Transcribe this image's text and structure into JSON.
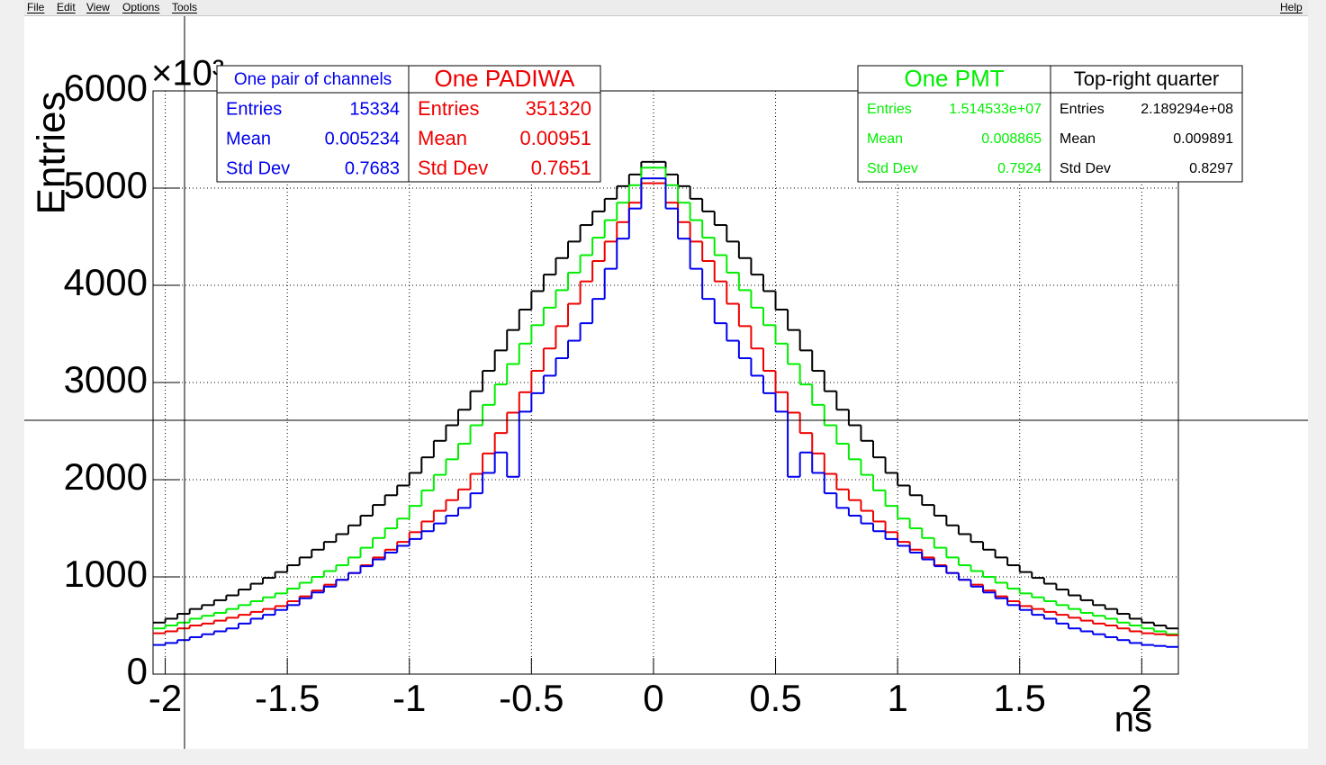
{
  "menu": [
    "File",
    "Edit",
    "View",
    "Options",
    "Tools",
    "Help"
  ],
  "chart_data": {
    "type": "histogram",
    "x_label": "ns",
    "y_label": "Entries",
    "y_multiplier": "×10³",
    "xlim": [
      -2.05,
      2.15
    ],
    "xticks": [
      -2,
      -1.5,
      -1,
      -0.5,
      0,
      0.5,
      1,
      1.5,
      2
    ],
    "ylim": [
      0,
      6000
    ],
    "yticks": [
      0,
      1000,
      2000,
      3000,
      4000,
      5000,
      6000
    ],
    "grid": true,
    "bins": [
      -2.05,
      -2,
      -1.95,
      -1.9,
      -1.85,
      -1.8,
      -1.75,
      -1.7,
      -1.65,
      -1.6,
      -1.55,
      -1.5,
      -1.45,
      -1.4,
      -1.35,
      -1.3,
      -1.25,
      -1.2,
      -1.15,
      -1.1,
      -1.05,
      -1,
      -0.95,
      -0.9,
      -0.85,
      -0.8,
      -0.75,
      -0.7,
      -0.65,
      -0.6,
      -0.55,
      -0.5,
      -0.45,
      -0.4,
      -0.35,
      -0.3,
      -0.25,
      -0.2,
      -0.15,
      -0.1,
      -0.05,
      0,
      0.05,
      0.1,
      0.15,
      0.2,
      0.25,
      0.3,
      0.35,
      0.4,
      0.45,
      0.5,
      0.55,
      0.6,
      0.65,
      0.7,
      0.75,
      0.8,
      0.85,
      0.9,
      0.95,
      1,
      1.05,
      1.1,
      1.15,
      1.2,
      1.25,
      1.3,
      1.35,
      1.4,
      1.45,
      1.5,
      1.55,
      1.6,
      1.65,
      1.7,
      1.75,
      1.8,
      1.85,
      1.9,
      1.95,
      2,
      2.05,
      2.1,
      2.15
    ],
    "series": [
      {
        "name": "Top-right quarter",
        "color": "#000000",
        "values": [
          530,
          570,
          620,
          670,
          710,
          760,
          810,
          870,
          930,
          990,
          1050,
          1120,
          1200,
          1280,
          1360,
          1440,
          1530,
          1630,
          1740,
          1840,
          1940,
          2070,
          2230,
          2400,
          2560,
          2720,
          2910,
          3120,
          3330,
          3540,
          3750,
          3940,
          4110,
          4280,
          4450,
          4620,
          4760,
          4890,
          5020,
          5140,
          5270,
          5270,
          5140,
          5020,
          4890,
          4760,
          4620,
          4450,
          4280,
          4110,
          3940,
          3750,
          3540,
          3330,
          3120,
          2910,
          2720,
          2560,
          2400,
          2230,
          2070,
          1940,
          1840,
          1740,
          1630,
          1530,
          1440,
          1360,
          1280,
          1200,
          1120,
          1050,
          990,
          930,
          870,
          810,
          760,
          710,
          670,
          620,
          570,
          530,
          500,
          470
        ],
        "stats": {
          "Entries": "2.189294e+08",
          "Mean": "0.009891",
          "Std Dev": "0.8297"
        }
      },
      {
        "name": "One PMT",
        "color": "#00ee00",
        "values": [
          470,
          500,
          530,
          570,
          600,
          630,
          670,
          710,
          750,
          790,
          830,
          880,
          940,
          1000,
          1060,
          1120,
          1200,
          1300,
          1400,
          1500,
          1600,
          1730,
          1890,
          2050,
          2210,
          2370,
          2560,
          2770,
          2980,
          3190,
          3400,
          3590,
          3770,
          3950,
          4130,
          4310,
          4490,
          4670,
          4850,
          5030,
          5210,
          5210,
          5030,
          4850,
          4670,
          4490,
          4310,
          4130,
          3950,
          3770,
          3590,
          3400,
          3190,
          2980,
          2770,
          2560,
          2370,
          2210,
          2050,
          1890,
          1730,
          1600,
          1500,
          1400,
          1300,
          1200,
          1120,
          1060,
          1000,
          940,
          880,
          830,
          790,
          750,
          710,
          670,
          630,
          600,
          570,
          530,
          500,
          470,
          440,
          410
        ],
        "stats": {
          "Entries": "1.514533e+07",
          "Mean": "0.008865",
          "Std Dev": "0.7924"
        }
      },
      {
        "name": "One PADIWA",
        "color": "#ee0000",
        "values": [
          420,
          440,
          470,
          500,
          520,
          550,
          580,
          610,
          640,
          670,
          700,
          750,
          800,
          860,
          920,
          970,
          1040,
          1120,
          1200,
          1280,
          1360,
          1460,
          1570,
          1680,
          1790,
          1900,
          2060,
          2270,
          2480,
          2690,
          2900,
          3120,
          3350,
          3580,
          3810,
          4040,
          4250,
          4450,
          4650,
          4850,
          5050,
          5050,
          4850,
          4650,
          4450,
          4250,
          4040,
          3810,
          3580,
          3350,
          3120,
          2900,
          2690,
          2480,
          2270,
          2060,
          1900,
          1790,
          1680,
          1570,
          1460,
          1360,
          1280,
          1200,
          1120,
          1040,
          970,
          920,
          860,
          800,
          750,
          700,
          670,
          640,
          610,
          580,
          550,
          520,
          500,
          470,
          440,
          420,
          410,
          400
        ],
        "stats": {
          "Entries": "351320",
          "Mean": "0.00951",
          "Std Dev": "0.7651"
        }
      },
      {
        "name": "One pair of channels",
        "color": "#0000ee",
        "values": [
          300,
          320,
          350,
          380,
          410,
          440,
          470,
          520,
          570,
          610,
          660,
          710,
          780,
          840,
          900,
          970,
          1040,
          1110,
          1180,
          1250,
          1320,
          1390,
          1470,
          1550,
          1630,
          1710,
          1860,
          2070,
          2280,
          2030,
          2700,
          2890,
          3070,
          3250,
          3430,
          3610,
          3860,
          4170,
          4480,
          4790,
          5100,
          5100,
          4790,
          4480,
          4170,
          3860,
          3610,
          3430,
          3250,
          3070,
          2890,
          2700,
          2030,
          2280,
          2070,
          1860,
          1710,
          1630,
          1550,
          1470,
          1390,
          1320,
          1250,
          1180,
          1110,
          1040,
          970,
          900,
          840,
          780,
          710,
          660,
          610,
          570,
          520,
          470,
          440,
          410,
          380,
          350,
          320,
          300,
          290,
          280
        ],
        "stats": {
          "Entries": "15334",
          "Mean": "0.005234",
          "Std Dev": "0.7683"
        }
      }
    ]
  }
}
